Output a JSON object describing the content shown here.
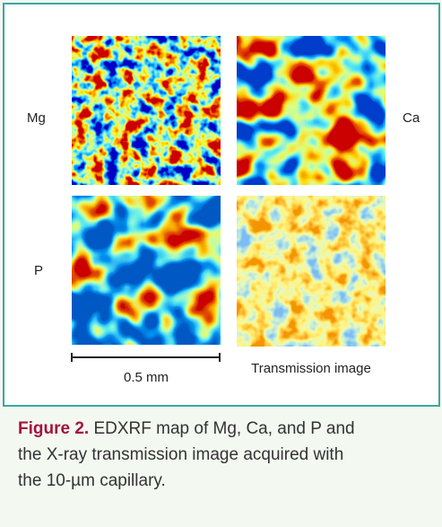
{
  "figure": {
    "panel_labels": [
      "Mg",
      "Ca",
      "P"
    ],
    "scale_bar": "0.5 mm",
    "transmission_label": "Transmission image"
  },
  "caption": {
    "label": "Figure 2.",
    "lines": [
      "EDXRF map of Mg, Ca, and P and",
      "the X-ray transmission image acquired with",
      "the 10-µm capillary."
    ]
  }
}
